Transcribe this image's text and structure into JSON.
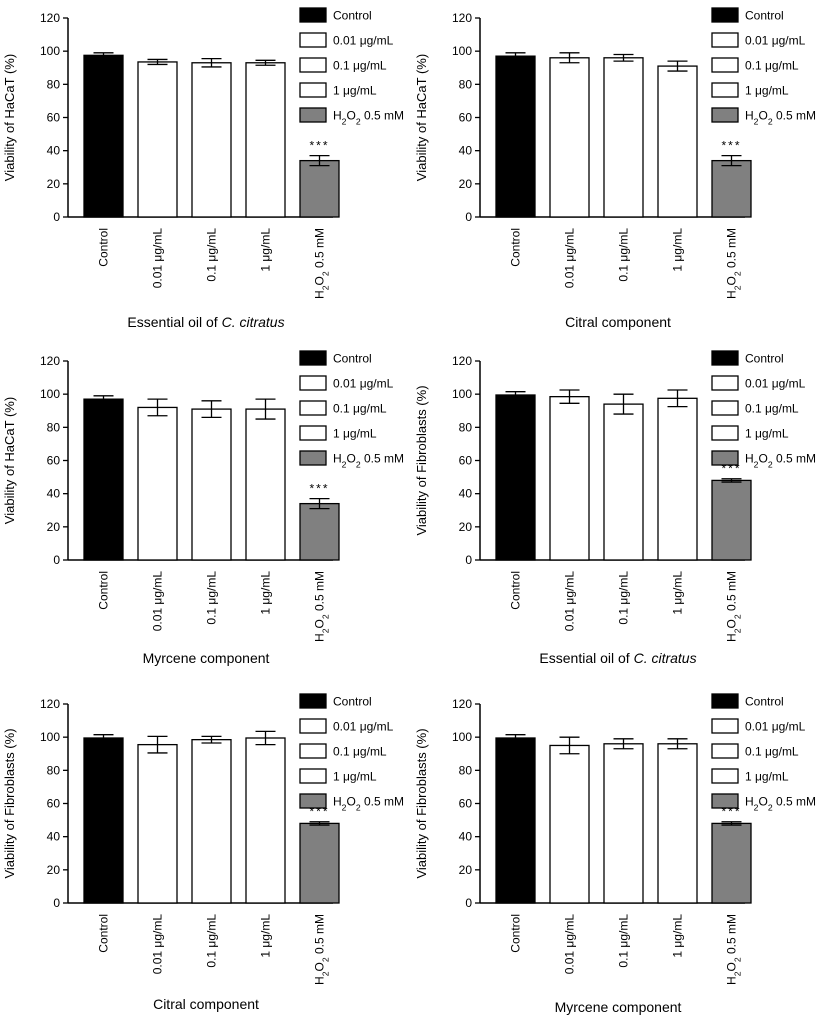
{
  "figure": {
    "categories": [
      "Control",
      "0.01 μg/mL",
      "0.1 μg/mL",
      "1 μg/mL",
      "H2O2 0.5 mM"
    ],
    "legend": [
      "Control",
      "0.01 μg/mL",
      "0.1 μg/mL",
      "1 μg/mL",
      "H2O2 0.5 mM"
    ],
    "significance_label": "***",
    "colors": {
      "control": "#000000",
      "treatment": "#ffffff",
      "h2o2": "#808080",
      "axis": "#000000"
    }
  },
  "chart_data": [
    {
      "type": "bar",
      "caption_prefix": "Essential oil of ",
      "caption_italic": "C. citratus",
      "ylabel": "Viability of HaCaT (%)",
      "ylim": [
        0,
        120
      ],
      "yticks": [
        0,
        20,
        40,
        60,
        80,
        100,
        120
      ],
      "categories": [
        "Control",
        "0.01 μg/mL",
        "0.1 μg/mL",
        "1 μg/mL",
        "H2O2 0.5 mM"
      ],
      "values": [
        97.5,
        93.5,
        93,
        93,
        34
      ],
      "errors": [
        1.5,
        1.5,
        2.5,
        1.5,
        3
      ],
      "significance": [
        "",
        "",
        "",
        "",
        "***"
      ],
      "legend": [
        "Control",
        "0.01 μg/mL",
        "0.1 μg/mL",
        "1 μg/mL",
        "H2O2 0.5 mM"
      ]
    },
    {
      "type": "bar",
      "caption_prefix": "Citral component",
      "caption_italic": "",
      "ylabel": "Viability of HaCaT (%)",
      "ylim": [
        0,
        120
      ],
      "yticks": [
        0,
        20,
        40,
        60,
        80,
        100,
        120
      ],
      "categories": [
        "Control",
        "0.01 μg/mL",
        "0.1 μg/mL",
        "1 μg/mL",
        "H2O2 0.5 mM"
      ],
      "values": [
        97,
        96,
        96,
        91,
        34
      ],
      "errors": [
        2,
        3,
        2,
        3,
        3
      ],
      "significance": [
        "",
        "",
        "",
        "",
        "***"
      ],
      "legend": [
        "Control",
        "0.01 μg/mL",
        "0.1 μg/mL",
        "1 μg/mL",
        "H2O2 0.5 mM"
      ]
    },
    {
      "type": "bar",
      "caption_prefix": "Myrcene component",
      "caption_italic": "",
      "ylabel": "Viability of HaCaT (%)",
      "ylim": [
        0,
        120
      ],
      "yticks": [
        0,
        20,
        40,
        60,
        80,
        100,
        120
      ],
      "categories": [
        "Control",
        "0.01 μg/mL",
        "0.1 μg/mL",
        "1 μg/mL",
        "H2O2 0.5 mM"
      ],
      "values": [
        97,
        92,
        91,
        91,
        34
      ],
      "errors": [
        2,
        5,
        5,
        6,
        3
      ],
      "significance": [
        "",
        "",
        "",
        "",
        "***"
      ],
      "legend": [
        "Control",
        "0.01 μg/mL",
        "0.1 μg/mL",
        "1 μg/mL",
        "H2O2 0.5 mM"
      ]
    },
    {
      "type": "bar",
      "caption_prefix": "Essential oil of ",
      "caption_italic": "C. citratus",
      "ylabel": "Viability of Fibroblasts (%)",
      "ylim": [
        0,
        120
      ],
      "yticks": [
        0,
        20,
        40,
        60,
        80,
        100,
        120
      ],
      "categories": [
        "Control",
        "0.01 μg/mL",
        "0.1 μg/mL",
        "1 μg/mL",
        "H2O2 0.5 mM"
      ],
      "values": [
        99.5,
        98.5,
        94,
        97.5,
        48
      ],
      "errors": [
        2,
        4,
        6,
        5,
        1
      ],
      "significance": [
        "",
        "",
        "",
        "",
        "***"
      ],
      "legend": [
        "Control",
        "0.01 μg/mL",
        "0.1 μg/mL",
        "1 μg/mL",
        "H2O2 0.5 mM"
      ]
    },
    {
      "type": "bar",
      "caption_prefix": "Citral component",
      "caption_italic": "",
      "ylabel": "Viability of Fibroblasts (%)",
      "ylim": [
        0,
        120
      ],
      "yticks": [
        0,
        20,
        40,
        60,
        80,
        100,
        120
      ],
      "categories": [
        "Control",
        "0.01 μg/mL",
        "0.1 μg/mL",
        "1 μg/mL",
        "H2O2 0.5 mM"
      ],
      "values": [
        99.5,
        95.5,
        98.5,
        99.5,
        48
      ],
      "errors": [
        2,
        5,
        2,
        4,
        1
      ],
      "significance": [
        "",
        "",
        "",
        "",
        "***"
      ],
      "legend": [
        "Control",
        "0.01 μg/mL",
        "0.1 μg/mL",
        "1 μg/mL",
        "H2O2 0.5 mM"
      ]
    },
    {
      "type": "bar",
      "caption_prefix": "Myrcene component",
      "caption_italic": "",
      "ylabel": "Viability of Fibroblasts (%)",
      "ylim": [
        0,
        120
      ],
      "yticks": [
        0,
        20,
        40,
        60,
        80,
        100,
        120
      ],
      "categories": [
        "Control",
        "0.01 μg/mL",
        "0.1 μg/mL",
        "1 μg/mL",
        "H2O2 0.5 mM"
      ],
      "values": [
        99.5,
        95,
        96,
        96,
        48
      ],
      "errors": [
        2,
        5,
        3,
        3,
        1
      ],
      "significance": [
        "",
        "",
        "",
        "",
        "***"
      ],
      "legend": [
        "Control",
        "0.01 μg/mL",
        "0.1 μg/mL",
        "1 μg/mL",
        "H2O2 0.5 mM"
      ]
    }
  ]
}
